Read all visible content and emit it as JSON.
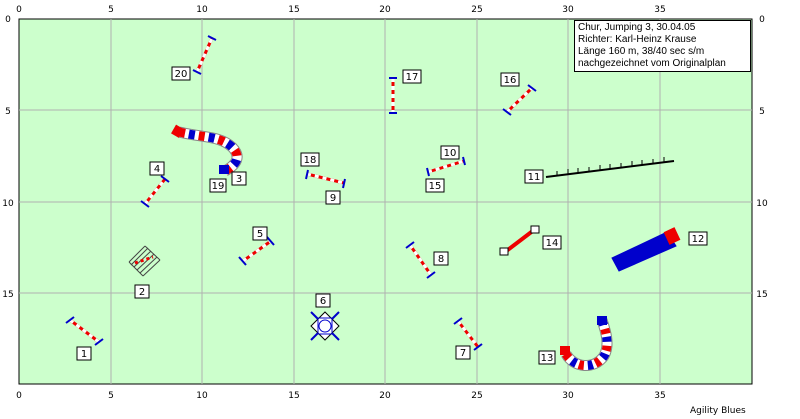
{
  "axes": {
    "x_ticks": [
      "0",
      "5",
      "10",
      "15",
      "20",
      "25",
      "30",
      "35"
    ],
    "y_ticks": [
      "0",
      "5",
      "10",
      "15"
    ]
  },
  "colors": {
    "field": "#ccffcc",
    "grid": "#b0b0b0",
    "pole_red": "#ee0000",
    "pole_blue": "#0000cc"
  },
  "info": {
    "line1": "Chur, Jumping 3, 30.04.05",
    "line2": "Richter: Karl-Heinz Krause",
    "line3": "Länge 160 m, 38/40 sec s/m",
    "line4": "nachgezeichnet vom Originalplan"
  },
  "credit": "Agility Blues",
  "obstacles": [
    {
      "id": "jump-1",
      "label": "1",
      "type": "hurdle"
    },
    {
      "id": "tire-2",
      "label": "2",
      "type": "tire"
    },
    {
      "id": "tunnel-3-19",
      "label": "3",
      "label2": "19",
      "type": "tunnel"
    },
    {
      "id": "jump-4",
      "label": "4",
      "type": "hurdle"
    },
    {
      "id": "jump-5",
      "label": "5",
      "type": "hurdle"
    },
    {
      "id": "table-6",
      "label": "6",
      "type": "table"
    },
    {
      "id": "jump-7",
      "label": "7",
      "type": "hurdle"
    },
    {
      "id": "jump-8",
      "label": "8",
      "type": "hurdle"
    },
    {
      "id": "jump-9-18",
      "label": "9",
      "label2": "18",
      "type": "hurdle"
    },
    {
      "id": "jump-10-15",
      "label": "10",
      "label2": "15",
      "type": "hurdle"
    },
    {
      "id": "weave-11",
      "label": "11",
      "type": "weave"
    },
    {
      "id": "chute-12",
      "label": "12",
      "type": "chute"
    },
    {
      "id": "tunnel-13",
      "label": "13",
      "type": "tunnel"
    },
    {
      "id": "jump-14",
      "label": "14",
      "type": "hurdle"
    },
    {
      "id": "jump-16",
      "label": "16",
      "type": "hurdle"
    },
    {
      "id": "jump-17",
      "label": "17",
      "type": "hurdle"
    },
    {
      "id": "jump-20",
      "label": "20",
      "type": "hurdle"
    }
  ]
}
